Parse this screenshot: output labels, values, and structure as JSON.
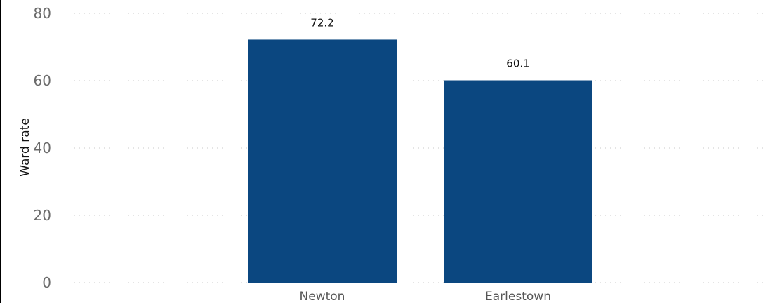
{
  "chart_data": {
    "type": "bar",
    "title": "",
    "xlabel": "",
    "ylabel": "Ward rate",
    "categories": [
      "Newton",
      "Earlestown"
    ],
    "values": [
      72.2,
      60.1
    ],
    "data_labels": [
      "72.2",
      "60.1"
    ],
    "ylim": [
      0,
      80
    ],
    "yticks": [
      0,
      20,
      40,
      60,
      80
    ],
    "grid": true,
    "legend": "none",
    "bar_color": "#0b4780"
  }
}
